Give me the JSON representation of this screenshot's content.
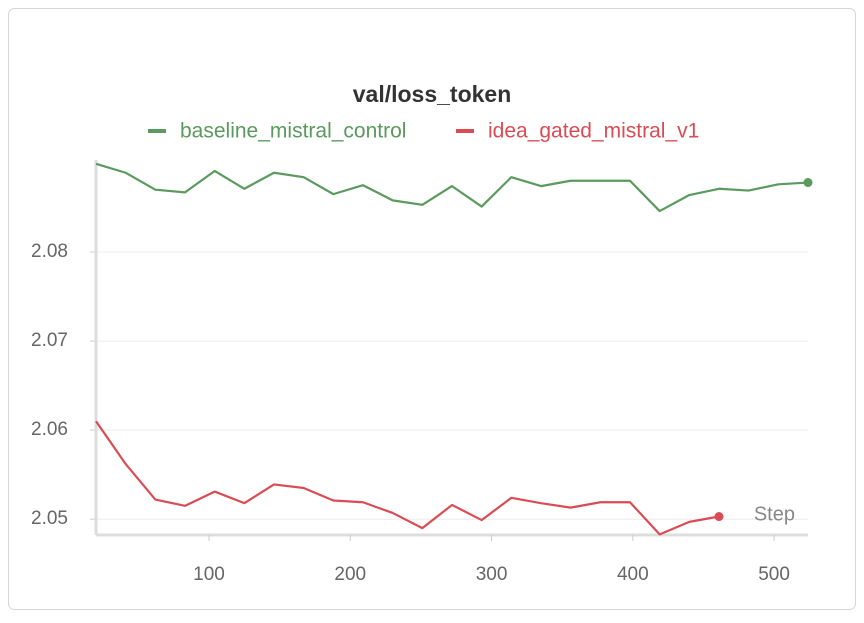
{
  "chart_data": {
    "type": "line",
    "title": "val/loss_token",
    "x_label": "Step",
    "series": [
      {
        "name": "baseline_mistral_control",
        "color": "#5a9a5e",
        "x": [
          20,
          41,
          62,
          83,
          104,
          125,
          146,
          167,
          188,
          209,
          230,
          251,
          272,
          293,
          314,
          335,
          356,
          377,
          398,
          419,
          440,
          461,
          482,
          503,
          524
        ],
        "values": [
          2.0899,
          2.0889,
          2.087,
          2.0867,
          2.0891,
          2.0871,
          2.0889,
          2.0884,
          2.0865,
          2.0875,
          2.0858,
          2.0853,
          2.0874,
          2.0851,
          2.0884,
          2.0874,
          2.088,
          2.088,
          2.088,
          2.0846,
          2.0864,
          2.0871,
          2.0869,
          2.0876,
          2.0878
        ]
      },
      {
        "name": "idea_gated_mistral_v1",
        "color": "#da4c54",
        "x": [
          20,
          41,
          62,
          83,
          104,
          125,
          146,
          167,
          188,
          209,
          230,
          251,
          272,
          293,
          314,
          335,
          356,
          377,
          398,
          419,
          440,
          461
        ],
        "values": [
          2.061,
          2.0562,
          2.0522,
          2.0515,
          2.0531,
          2.0518,
          2.0539,
          2.0535,
          2.0521,
          2.0519,
          2.0507,
          2.049,
          2.0516,
          2.0499,
          2.0524,
          2.0518,
          2.0513,
          2.0519,
          2.0519,
          2.0483,
          2.0497,
          2.0503
        ]
      }
    ],
    "xlim": [
      20,
      524
    ],
    "xticks": [
      100,
      200,
      300,
      400,
      500
    ],
    "ylim": [
      2.048,
      2.0905
    ],
    "yticks": [
      2.05,
      2.06,
      2.07,
      2.08
    ],
    "grid": true
  }
}
